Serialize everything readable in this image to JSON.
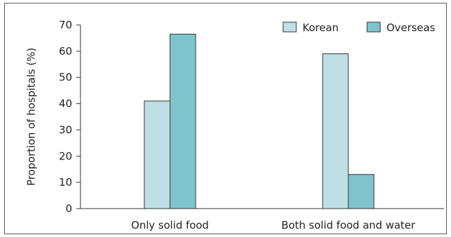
{
  "chart_data": {
    "type": "bar",
    "title": "",
    "xlabel": "",
    "ylabel": "Proportion of hospitals (%)",
    "ylim": [
      0,
      70
    ],
    "yticks": [
      0,
      10,
      20,
      30,
      40,
      50,
      60,
      70
    ],
    "categories": [
      "Only solid food",
      "Both solid food and water"
    ],
    "series": [
      {
        "name": "Korean",
        "values": [
          41,
          59
        ],
        "color": "#bfdfe6"
      },
      {
        "name": "Overseas",
        "values": [
          66.5,
          13
        ],
        "color": "#7fc4cd"
      }
    ],
    "grid": false,
    "legend_position": "top-right"
  }
}
